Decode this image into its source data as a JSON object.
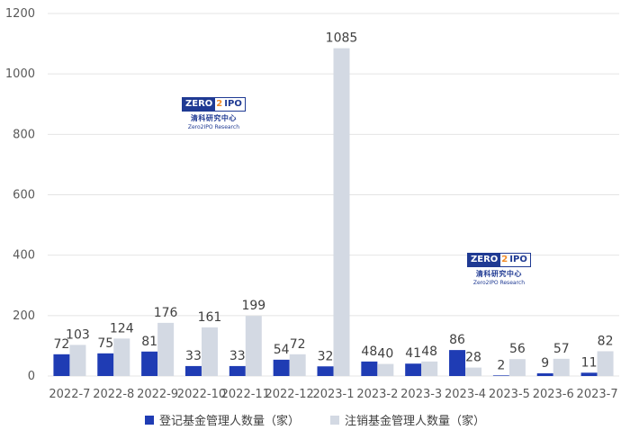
{
  "chart_data": {
    "type": "bar",
    "categories": [
      "2022-7",
      "2022-8",
      "2022-9",
      "2022-10",
      "2022-11",
      "2022-12",
      "2023-1",
      "2023-2",
      "2023-3",
      "2023-4",
      "2023-5",
      "2023-6",
      "2023-7"
    ],
    "series": [
      {
        "name": "登记基金管理人数量（家）",
        "color": "#1f3cb4",
        "values": [
          72,
          75,
          81,
          33,
          33,
          54,
          32,
          48,
          41,
          86,
          2,
          9,
          11
        ]
      },
      {
        "name": "注销基金管理人数量（家）",
        "color": "#d3d9e3",
        "values": [
          103,
          124,
          176,
          161,
          199,
          72,
          1085,
          40,
          48,
          28,
          56,
          57,
          82
        ]
      }
    ],
    "yticks": [
      "0",
      "200",
      "400",
      "600",
      "800",
      "1000",
      "1200"
    ],
    "ylim": [
      0,
      1200
    ],
    "grid": true,
    "legend_position": "bottom"
  },
  "watermark": {
    "zero": "ZERO",
    "two": "2",
    "ipo": "IPO",
    "cn": "清科研究中心",
    "en": "Zero2IPO Research"
  }
}
